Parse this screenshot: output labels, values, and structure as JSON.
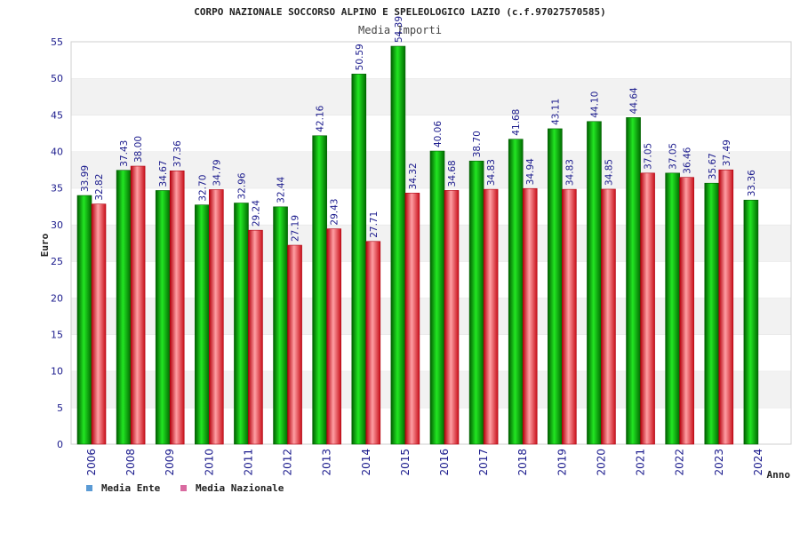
{
  "chart_data": {
    "type": "bar",
    "title": "CORPO NAZIONALE SOCCORSO ALPINO E SPELEOLOGICO LAZIO (c.f.97027570585)",
    "subtitle": "Media Importi",
    "xlabel": "Anno",
    "ylabel": "Euro",
    "ylim": [
      0,
      55
    ],
    "yticks": [
      0,
      5,
      10,
      15,
      20,
      25,
      30,
      35,
      40,
      45,
      50,
      55
    ],
    "grid": "horizontal bands",
    "legend_position": "bottom-left",
    "categories": [
      "2006",
      "2008",
      "2009",
      "2010",
      "2011",
      "2012",
      "2013",
      "2014",
      "2015",
      "2016",
      "2017",
      "2018",
      "2019",
      "2020",
      "2021",
      "2022",
      "2023",
      "2024"
    ],
    "series": [
      {
        "name": "Media Ente",
        "color": "#00b000",
        "legend_color": "#5b9bd5",
        "values": [
          33.99,
          37.43,
          34.67,
          32.7,
          32.96,
          32.44,
          42.16,
          50.59,
          54.39,
          40.06,
          38.7,
          41.68,
          43.11,
          44.1,
          44.64,
          37.05,
          35.67,
          33.36
        ],
        "labels": [
          "33.99",
          "37.43",
          "34.67",
          "32.70",
          "32.96",
          "32.44",
          "42.16",
          "50.59",
          "54.39",
          "40.06",
          "38.70",
          "41.68",
          "43.11",
          "44.10",
          "44.64",
          "37.05",
          "35.67",
          "33.36"
        ]
      },
      {
        "name": "Media Nazionale",
        "color": "#e8202a",
        "legend_color": "#d96aa0",
        "values": [
          32.82,
          38.0,
          37.36,
          34.79,
          29.24,
          27.19,
          29.43,
          27.71,
          34.32,
          34.68,
          34.83,
          34.94,
          34.83,
          34.85,
          37.05,
          36.46,
          37.49,
          null
        ],
        "labels": [
          "32.82",
          "38.00",
          "37.36",
          "34.79",
          "29.24",
          "27.19",
          "29.43",
          "27.71",
          "34.32",
          "34.68",
          "34.83",
          "34.94",
          "34.83",
          "34.85",
          "37.05",
          "36.46",
          "37.49",
          null
        ]
      }
    ]
  }
}
